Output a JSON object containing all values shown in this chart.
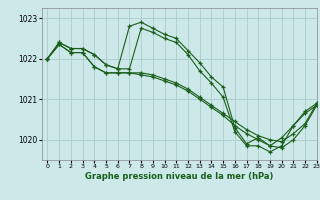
{
  "title": "Graphe pression niveau de la mer (hPa)",
  "bg_color": "#cce8e8",
  "grid_color": "#aacccc",
  "line_color": "#1a5e1a",
  "xlim": [
    -0.5,
    23
  ],
  "ylim": [
    1019.5,
    1023.25
  ],
  "yticks": [
    1020,
    1021,
    1022,
    1023
  ],
  "xticks": [
    0,
    1,
    2,
    3,
    4,
    5,
    6,
    7,
    8,
    9,
    10,
    11,
    12,
    13,
    14,
    15,
    16,
    17,
    18,
    19,
    20,
    21,
    22,
    23
  ],
  "lines": [
    {
      "x": [
        0,
        1,
        2,
        3,
        4,
        5,
        6,
        7,
        8,
        9,
        10,
        11,
        12,
        13,
        14,
        15,
        16,
        17,
        18,
        19,
        20,
        21,
        22,
        23
      ],
      "y": [
        1022.0,
        1022.4,
        1022.25,
        1022.25,
        1022.1,
        1021.85,
        1021.75,
        1022.8,
        1022.9,
        1022.75,
        1022.6,
        1022.5,
        1022.2,
        1021.9,
        1021.55,
        1021.3,
        1020.3,
        1019.9,
        1020.05,
        1019.85,
        1020.05,
        1020.35,
        1020.7,
        1020.9
      ]
    },
    {
      "x": [
        0,
        1,
        2,
        3,
        4,
        5,
        6,
        7,
        8,
        9,
        10,
        11,
        12,
        13,
        14,
        15,
        16,
        17,
        18,
        19,
        20,
        21,
        22,
        23
      ],
      "y": [
        1022.0,
        1022.4,
        1022.25,
        1022.25,
        1022.1,
        1021.85,
        1021.75,
        1021.75,
        1022.75,
        1022.65,
        1022.5,
        1022.4,
        1022.1,
        1021.7,
        1021.4,
        1021.05,
        1020.2,
        1019.85,
        1019.85,
        1019.7,
        1019.85,
        1020.35,
        1020.65,
        1020.85
      ]
    },
    {
      "x": [
        0,
        1,
        2,
        3,
        4,
        5,
        6,
        7,
        8,
        9,
        10,
        11,
        12,
        13,
        14,
        15,
        16,
        17,
        18,
        19,
        20,
        21,
        22,
        23
      ],
      "y": [
        1022.0,
        1022.35,
        1022.15,
        1022.15,
        1021.8,
        1021.65,
        1021.65,
        1021.65,
        1021.65,
        1021.6,
        1021.5,
        1021.4,
        1021.25,
        1021.05,
        1020.85,
        1020.65,
        1020.45,
        1020.25,
        1020.1,
        1020.0,
        1019.95,
        1020.15,
        1020.4,
        1020.9
      ]
    },
    {
      "x": [
        0,
        1,
        2,
        3,
        4,
        5,
        6,
        7,
        8,
        9,
        10,
        11,
        12,
        13,
        14,
        15,
        16,
        17,
        18,
        19,
        20,
        21,
        22,
        23
      ],
      "y": [
        1022.0,
        1022.35,
        1022.15,
        1022.15,
        1021.8,
        1021.65,
        1021.65,
        1021.65,
        1021.6,
        1021.55,
        1021.45,
        1021.35,
        1021.2,
        1021.0,
        1020.8,
        1020.6,
        1020.35,
        1020.15,
        1020.0,
        1019.85,
        1019.8,
        1020.0,
        1020.35,
        1020.85
      ]
    }
  ]
}
